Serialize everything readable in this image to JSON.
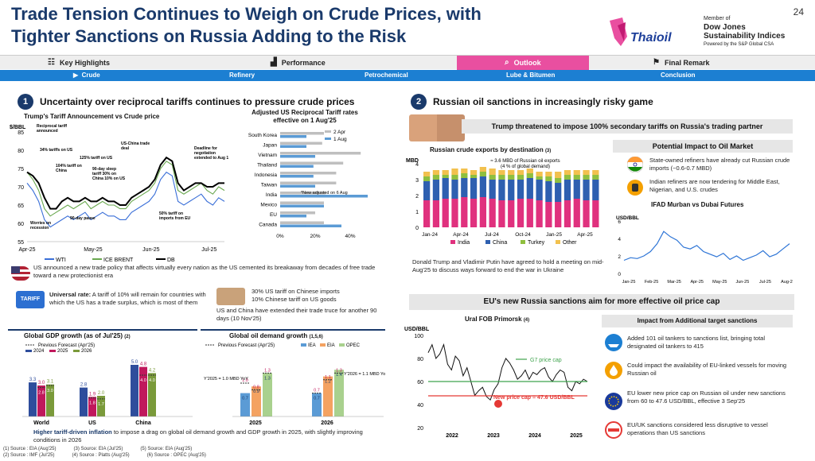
{
  "header": {
    "title_line1": "Trade Tension Continues to Weigh on Crude Prices, with",
    "title_line2": "Tighter Sanctions on Russia Adding to the Risk",
    "page_number": "24",
    "logo_text": "Thaioil",
    "djsi_member": "Member of",
    "djsi_name1": "Dow Jones",
    "djsi_name2": "Sustainability Indices",
    "djsi_powered": "Powered by the S&P Global CSA"
  },
  "nav": {
    "tabs": [
      "Key Highlights",
      "Performance",
      "Outlook",
      "Final Remark"
    ],
    "subtabs": [
      "Crude",
      "Refinery",
      "Petrochemical",
      "Lube & Bitumen",
      "Conclusion"
    ]
  },
  "left": {
    "section_number": "1",
    "section_title": "Uncertainty over reciprocal tariffs continues to pressure crude prices",
    "tariff_chart_title": "Trump's Tariff Announcement vs Crude price",
    "tariff_chart_unit": "$/BBL",
    "recip_title_line1": "Adjusted US Reciprocal Tariff rates",
    "recip_title_line2": "effective on 1 Aug'25",
    "us_policy_text": "US announced a new trade policy that affects virtually every nation as the US cemented its breakaway from decades of free trade toward a new protectionist era",
    "universal_bold": "Universal rate:",
    "universal_text": "A tariff of 10% will remain for countries with which the US has a trade surplus, which is most of them",
    "china_text1": "30% US tariff on Chinese imports",
    "china_text2": "10% Chinese tariff on US goods",
    "china_text3": "US and China have extended their trade truce for another 90 days (10 Nov'25)",
    "gdp_title": "Global GDP growth (as of Jul'25)",
    "gdp_sup": "(2)",
    "oil_title": "Global oil demand growth",
    "oil_sup": "(1,5,6)",
    "footer_bold": "Higher tariff-driven inflation",
    "footer_text": " to impose a drag on global oil demand growth and GDP growth in 2025, with slightly improving conditions in 2026",
    "sources": [
      "(1)   Source : EIA (Aug'25)",
      "(2)   Source : IMF (Jul'25)",
      "(3)   Source: EIA (Jul'25)",
      "(4)   Source : Platts (Aug'25)",
      "(5)   Source: EIA (Aug'25)",
      "(6)   Source : OPEC (Aug'25)"
    ]
  },
  "right": {
    "section_number": "2",
    "section_title": "Russian oil sanctions in increasingly risky game",
    "trump_banner": "Trump threatened to impose 100% secondary tariffs on Russia's trading partner",
    "exports_title": "Russian crude exports by destination",
    "exports_sup": "(3)",
    "exports_note1": "≈ 3.6 MBD of Russian oil exports",
    "exports_note2": "(4 % of global demand)",
    "meeting_text": "Donald Trump and Vladimir Putin have agreed to hold a meeting on mid-Aug'25 to discuss ways forward to end the war in Ukraine",
    "impact_title": "Potential Impact to Oil Market",
    "impact1": "State-owned refiners have already cut Russian crude imports (~0.6-0.7 MBD)",
    "impact2": "Indian refiners are now tendering for Middle East, Nigerian, and U.S. crudes",
    "ifad_title": "IFAD Murban vs Dubai Futures",
    "ifad_unit": "USD/BBL",
    "eu_banner": "EU's new Russia sanctions aim for more effective oil price cap",
    "urals_title": "Ural FOB Primorsk",
    "urals_sup": "(4)",
    "urals_unit": "USD/BBL",
    "g7_label": "G7 price cap",
    "price_cap_label": "New price cap = 47.6 USD/BBL",
    "add_impact_title": "Impact from Additional target sanctions",
    "add1": "Added 101 oil tankers to sanctions list, bringing total designated oil tankers to 415",
    "add2": "Could impact the availability of EU-linked vessels for moving Russian oil",
    "add3": "EU lower new price cap on Russian oil under new sanctions from 60 to 47.6 USD/BBL, effective 3 Sep'25",
    "add4": "EU/UK sanctions considered less disruptive to vessel operations than US sanctions"
  },
  "chart_data": [
    {
      "type": "line",
      "title": "Trump's Tariff Announcement vs Crude price",
      "ylabel": "$/BBL",
      "ylim": [
        55,
        85
      ],
      "yticks": [
        55,
        60,
        65,
        70,
        75,
        80,
        85
      ],
      "xticks": [
        "Apr-25",
        "May-25",
        "Jun-25",
        "Jul-25"
      ],
      "series": [
        {
          "name": "WTI",
          "color": "#3a6fd8",
          "values": [
            71,
            69,
            66,
            61,
            59,
            60,
            61,
            62,
            61,
            62,
            63,
            61,
            62,
            63,
            62,
            62,
            61,
            61,
            63,
            64,
            65,
            66,
            68,
            72,
            74,
            73,
            66,
            65,
            66,
            67,
            68,
            66,
            65,
            67,
            66
          ]
        },
        {
          "name": "ICE BRENT",
          "color": "#6aa84f",
          "values": [
            74,
            72,
            69,
            64,
            62,
            63,
            64,
            65,
            64,
            65,
            66,
            64,
            65,
            66,
            65,
            65,
            64,
            64,
            66,
            67,
            68,
            69,
            71,
            75,
            77,
            76,
            69,
            68,
            69,
            70,
            71,
            69,
            68,
            70,
            69
          ]
        },
        {
          "name": "DB",
          "color": "#000000",
          "values": [
            74,
            73,
            71,
            67,
            64,
            64,
            66,
            67,
            66,
            66,
            67,
            66,
            66,
            67,
            66,
            66,
            65,
            65,
            67,
            68,
            69,
            70,
            72,
            76,
            78,
            77,
            71,
            69,
            70,
            71,
            71,
            70,
            70,
            71,
            71
          ]
        }
      ],
      "annotations": [
        "Reciprocal tariff announced",
        "34% tariffs on US",
        "104% tariff on China",
        "125% tariff on US",
        "90-day sleep tariff 30% on China 10% on US",
        "US-China trade deal",
        "Deadline for negotiation extended to Aug 1",
        "Worries on recession",
        "90-day pause",
        "50% tariff on imports from EU"
      ]
    },
    {
      "type": "bar",
      "title": "Adjusted US Reciprocal Tariff rates effective on 1 Aug'25",
      "categories": [
        "South Korea",
        "Japan",
        "Vietnam",
        "Thailand",
        "Indonesia",
        "Taiwan",
        "India",
        "Mexico",
        "EU",
        "Canada"
      ],
      "series": [
        {
          "name": "2 Apr",
          "color": "#bfbfbf",
          "values": [
            25,
            24,
            46,
            36,
            32,
            32,
            26,
            25,
            20,
            25
          ]
        },
        {
          "name": "1 Aug",
          "color": "#5b9bd5",
          "values": [
            15,
            15,
            20,
            19,
            19,
            20,
            50,
            25,
            15,
            35
          ]
        }
      ],
      "xticks": [
        "0%",
        "20%",
        "40%"
      ],
      "note": "*New adjusted on 6 Aug"
    },
    {
      "type": "bar",
      "title": "Global GDP growth (as of Jul'25)",
      "categories": [
        "World",
        "US",
        "China"
      ],
      "series": [
        {
          "name": "2024",
          "color": "#2e4d9c",
          "values": [
            3.3,
            2.8,
            5.0
          ]
        },
        {
          "name": "2025",
          "color": "#c0185c",
          "values": [
            3.0,
            1.9,
            4.8
          ]
        },
        {
          "name": "2026",
          "color": "#7a9a3a",
          "values": [
            3.1,
            2.0,
            4.2
          ]
        }
      ],
      "previous_forecast": [
        [
          2.8,
          1.8,
          4.0
        ],
        [
          3.0,
          1.7,
          4.0
        ]
      ],
      "legend_prev": "Previous Forecast (Apr'25)"
    },
    {
      "type": "bar",
      "title": "Global oil demand growth",
      "categories": [
        "2025",
        "2026"
      ],
      "series": [
        {
          "name": "IEA",
          "color": "#5b9bd5",
          "values": [
            0.7,
            0.7
          ]
        },
        {
          "name": "EIA",
          "color": "#f4a261",
          "values": [
            0.9,
            1.2
          ]
        },
        {
          "name": "OPEC",
          "color": "#a9d18e",
          "values": [
            1.3,
            1.4
          ]
        }
      ],
      "previous_labels": [
        "1.0",
        "0.8",
        "1.3",
        "0.7",
        "1.1",
        "1.3"
      ],
      "legend_prev": "Previous Forecast (Apr'25)",
      "notes": [
        "Y'2025 = 1.0 MBD YoY",
        "Y'2026 = 1.1 MBD YoY"
      ]
    },
    {
      "type": "bar",
      "title": "Russian crude exports by destination",
      "ylabel": "MBD",
      "ylim": [
        0,
        4
      ],
      "xticks": [
        "Jan-24",
        "Apr-24",
        "Jul-24",
        "Oct-24",
        "Jan-25",
        "Apr-25"
      ],
      "series": [
        {
          "name": "India",
          "color": "#e0317e"
        },
        {
          "name": "China",
          "color": "#2e5fb0"
        },
        {
          "name": "Turkey",
          "color": "#8fbf3f"
        },
        {
          "name": "Other",
          "color": "#f2c14e"
        }
      ],
      "stacks": [
        [
          1.7,
          1.2,
          0.3,
          0.3
        ],
        [
          1.7,
          1.3,
          0.3,
          0.3
        ],
        [
          1.8,
          1.3,
          0.2,
          0.3
        ],
        [
          1.8,
          1.2,
          0.3,
          0.4
        ],
        [
          1.9,
          1.2,
          0.3,
          0.3
        ],
        [
          1.8,
          1.3,
          0.2,
          0.3
        ],
        [
          1.9,
          1.3,
          0.3,
          0.3
        ],
        [
          1.8,
          1.2,
          0.3,
          0.4
        ],
        [
          1.7,
          1.3,
          0.3,
          0.3
        ],
        [
          1.7,
          1.3,
          0.3,
          0.3
        ],
        [
          1.8,
          1.2,
          0.3,
          0.3
        ],
        [
          1.8,
          1.3,
          0.3,
          0.3
        ],
        [
          1.7,
          1.3,
          0.2,
          0.3
        ],
        [
          1.6,
          1.3,
          0.3,
          0.3
        ],
        [
          1.6,
          1.2,
          0.3,
          0.4
        ],
        [
          1.7,
          1.3,
          0.3,
          0.3
        ],
        [
          1.8,
          1.2,
          0.3,
          0.3
        ],
        [
          1.7,
          1.3,
          0.3,
          0.3
        ],
        [
          1.7,
          1.3,
          0.3,
          0.3
        ]
      ]
    },
    {
      "type": "line",
      "title": "IFAD Murban vs Dubai Futures",
      "ylabel": "USD/BBL",
      "ylim": [
        0,
        6
      ],
      "xticks": [
        "Jan-25",
        "Feb-25",
        "Mar-25",
        "Apr-25",
        "May-25",
        "Jun-25",
        "Jul-25",
        "Aug-25"
      ],
      "series": [
        {
          "name": "IFAD Murban vs Dubai",
          "color": "#2e75d6",
          "values": [
            1.5,
            1.8,
            1.7,
            2.0,
            2.5,
            3.4,
            4.8,
            4.2,
            3.8,
            3.0,
            2.8,
            3.2,
            2.5,
            2.2,
            1.9,
            2.3,
            1.6,
            2.0,
            1.5,
            1.8,
            2.1,
            2.6,
            1.9,
            2.2,
            2.8,
            3.4
          ]
        }
      ]
    },
    {
      "type": "line",
      "title": "Ural FOB Primorsk",
      "ylabel": "USD/BBL",
      "ylim": [
        20,
        100
      ],
      "xticks": [
        "2022",
        "2023",
        "2024",
        "2025"
      ],
      "series": [
        {
          "name": "Ural",
          "color": "#111111",
          "values": [
            85,
            92,
            80,
            84,
            92,
            75,
            70,
            82,
            78,
            65,
            72,
            60,
            48,
            52,
            55,
            47,
            44,
            53,
            58,
            72,
            80,
            76,
            70,
            62,
            65,
            70,
            62,
            68,
            66,
            70,
            72,
            64,
            60,
            66,
            70,
            68,
            55,
            52,
            60,
            58,
            62,
            60
          ]
        }
      ],
      "hlines": [
        {
          "name": "G7 price cap",
          "value": 60,
          "color": "#3fa34d"
        },
        {
          "name": "New price cap",
          "value": 47.6,
          "color": "#e53935"
        }
      ]
    }
  ]
}
